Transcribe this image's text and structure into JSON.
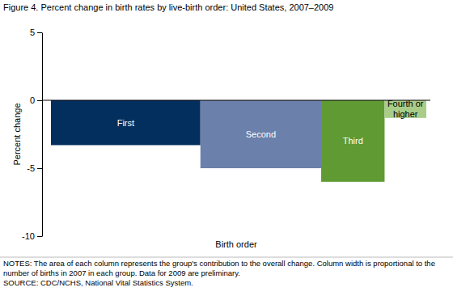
{
  "chart_data": {
    "type": "bar",
    "title": "Figure 4. Percent change in birth rates by live-birth order: United States, 2007–2009",
    "x_label": "Birth order",
    "y_label": "Percent change",
    "categories": [
      "First",
      "Second",
      "Third",
      "Fourth or higher"
    ],
    "values": [
      -3.3,
      -5.0,
      -6.0,
      -1.3
    ],
    "births_2007": [
      1.72,
      1.39,
      0.73,
      0.48
    ],
    "colors": [
      "#022f5e",
      "#6b80aa",
      "#5f9a32",
      "#a9cd88"
    ],
    "ylim": [
      -10,
      5
    ],
    "yticks": [
      -10,
      -5,
      0,
      5
    ],
    "grid": false,
    "data_labels": false,
    "annotations": [
      "NOTES: The area of each column represents the group's contribution to the overall change. Column width is proportional to the number of births in 2007 in each group. Data for 2009 are preliminary.",
      "SOURCE: CDC/NCHS, National Vital Statistics System."
    ]
  }
}
